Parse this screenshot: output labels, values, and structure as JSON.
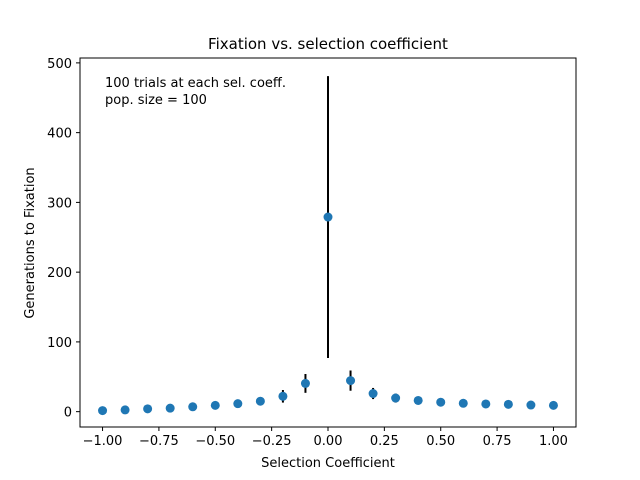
{
  "chart_data": {
    "type": "scatter",
    "title": "Fixation vs. selection coefficient",
    "xlabel": "Selection Coefficient",
    "ylabel": "Generations to Fixation",
    "xlim": [
      -1.1,
      1.1
    ],
    "ylim": [
      -22,
      507
    ],
    "xticks": [
      -1.0,
      -0.75,
      -0.5,
      -0.25,
      0.0,
      0.25,
      0.5,
      0.75,
      1.0
    ],
    "xtick_labels": [
      "−1.00",
      "−0.75",
      "−0.50",
      "−0.25",
      "0.00",
      "0.25",
      "0.50",
      "0.75",
      "1.00"
    ],
    "yticks": [
      0,
      100,
      200,
      300,
      400,
      500
    ],
    "ytick_labels": [
      "0",
      "100",
      "200",
      "300",
      "400",
      "500"
    ],
    "grid": false,
    "marker_color": "#1f77b4",
    "errorbar_color": "#000000",
    "annotations": [
      "100 trials at each sel. coeff.",
      "pop. size = 100"
    ],
    "points": [
      {
        "x": -1.0,
        "y": 1.5,
        "err": 0.8
      },
      {
        "x": -0.9,
        "y": 2.5,
        "err": 0.8
      },
      {
        "x": -0.8,
        "y": 4.0,
        "err": 1.0
      },
      {
        "x": -0.7,
        "y": 5.0,
        "err": 1.5
      },
      {
        "x": -0.6,
        "y": 7.0,
        "err": 2.5
      },
      {
        "x": -0.5,
        "y": 9.0,
        "err": 3.0
      },
      {
        "x": -0.4,
        "y": 11.5,
        "err": 4.0
      },
      {
        "x": -0.3,
        "y": 15.0,
        "err": 5.5
      },
      {
        "x": -0.2,
        "y": 22.0,
        "err": 9.0
      },
      {
        "x": -0.1,
        "y": 40.5,
        "err": 13.5
      },
      {
        "x": 0.0,
        "y": 279.0,
        "err": 202.0
      },
      {
        "x": 0.1,
        "y": 44.5,
        "err": 14.5
      },
      {
        "x": 0.2,
        "y": 26.0,
        "err": 8.0
      },
      {
        "x": 0.3,
        "y": 19.5,
        "err": 6.5
      },
      {
        "x": 0.4,
        "y": 16.0,
        "err": 5.0
      },
      {
        "x": 0.5,
        "y": 13.5,
        "err": 4.5
      },
      {
        "x": 0.6,
        "y": 12.0,
        "err": 3.5
      },
      {
        "x": 0.7,
        "y": 11.0,
        "err": 3.0
      },
      {
        "x": 0.8,
        "y": 10.5,
        "err": 2.5
      },
      {
        "x": 0.9,
        "y": 9.5,
        "err": 2.0
      },
      {
        "x": 1.0,
        "y": 9.0,
        "err": 2.0
      }
    ]
  }
}
